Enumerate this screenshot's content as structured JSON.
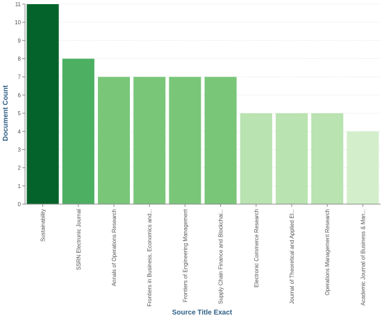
{
  "chart_data": {
    "type": "bar",
    "xlabel": "Source Title Exact",
    "ylabel": "Document Count",
    "ylim": [
      0,
      11
    ],
    "yticks": [
      0,
      1,
      2,
      3,
      4,
      5,
      6,
      7,
      8,
      9,
      10,
      11
    ],
    "grid": "horizontal, dotted",
    "categories": [
      "Sustainability",
      "SSRN Electronic Journal",
      "Annals of Operations Research",
      "Frontiers in Business, Economics and...",
      "Frontiers of Engineering Management",
      "Supply Chain Finance and Blockchai...",
      "Electronic Commerce Research",
      "Journal of Theoretical and Applied El...",
      "Operations Management Research",
      "Academic Journal of Business & Man..."
    ],
    "values": [
      11,
      8,
      7,
      7,
      7,
      7,
      5,
      5,
      5,
      4
    ],
    "color_scale": {
      "11": "#04632a",
      "8": "#4caf62",
      "7": "#79c679",
      "5": "#b9e3b1",
      "4": "#d3eecb"
    }
  }
}
